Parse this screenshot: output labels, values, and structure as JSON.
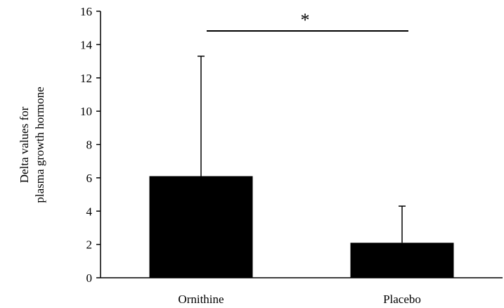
{
  "chart_data": {
    "type": "bar",
    "categories": [
      "Ornithine",
      "Placebo"
    ],
    "values": [
      6.1,
      2.1
    ],
    "error_upper": [
      7.2,
      2.2
    ],
    "ylabel_lines": [
      "Delta values for",
      "plasma growth hormone"
    ],
    "ylim": [
      0,
      16
    ],
    "yticks": [
      0,
      2,
      4,
      6,
      8,
      10,
      12,
      14,
      16
    ],
    "grid": false,
    "legend": "none",
    "annotation": "*",
    "bar_color": "#000000"
  }
}
